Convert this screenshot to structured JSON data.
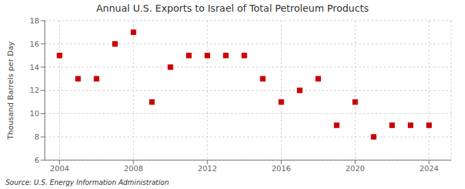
{
  "chart_data": {
    "type": "scatter",
    "title": "Annual U.S. Exports to Israel of Total Petroleum Products",
    "ylabel": "Thousand Barrels per Day",
    "annotations": [
      "Source: U.S. Energy Information Administration"
    ],
    "x": [
      2004,
      2005,
      2006,
      2007,
      2008,
      2009,
      2010,
      2011,
      2012,
      2013,
      2014,
      2015,
      2016,
      2017,
      2018,
      2019,
      2020,
      2021,
      2022,
      2023,
      2024
    ],
    "values": [
      15,
      13,
      13,
      16,
      17,
      11,
      14,
      15,
      15,
      15,
      15,
      13,
      11,
      12,
      13,
      9,
      11,
      8,
      9,
      9,
      9
    ],
    "color": "#cc0000",
    "marker": "square",
    "xlim": [
      2003.2,
      2025.2
    ],
    "xticks": [
      2004,
      2008,
      2012,
      2016,
      2020,
      2024
    ],
    "ylim": [
      6,
      18
    ],
    "yticks": [
      6,
      8,
      10,
      12,
      14,
      16,
      18
    ],
    "grid": true
  }
}
